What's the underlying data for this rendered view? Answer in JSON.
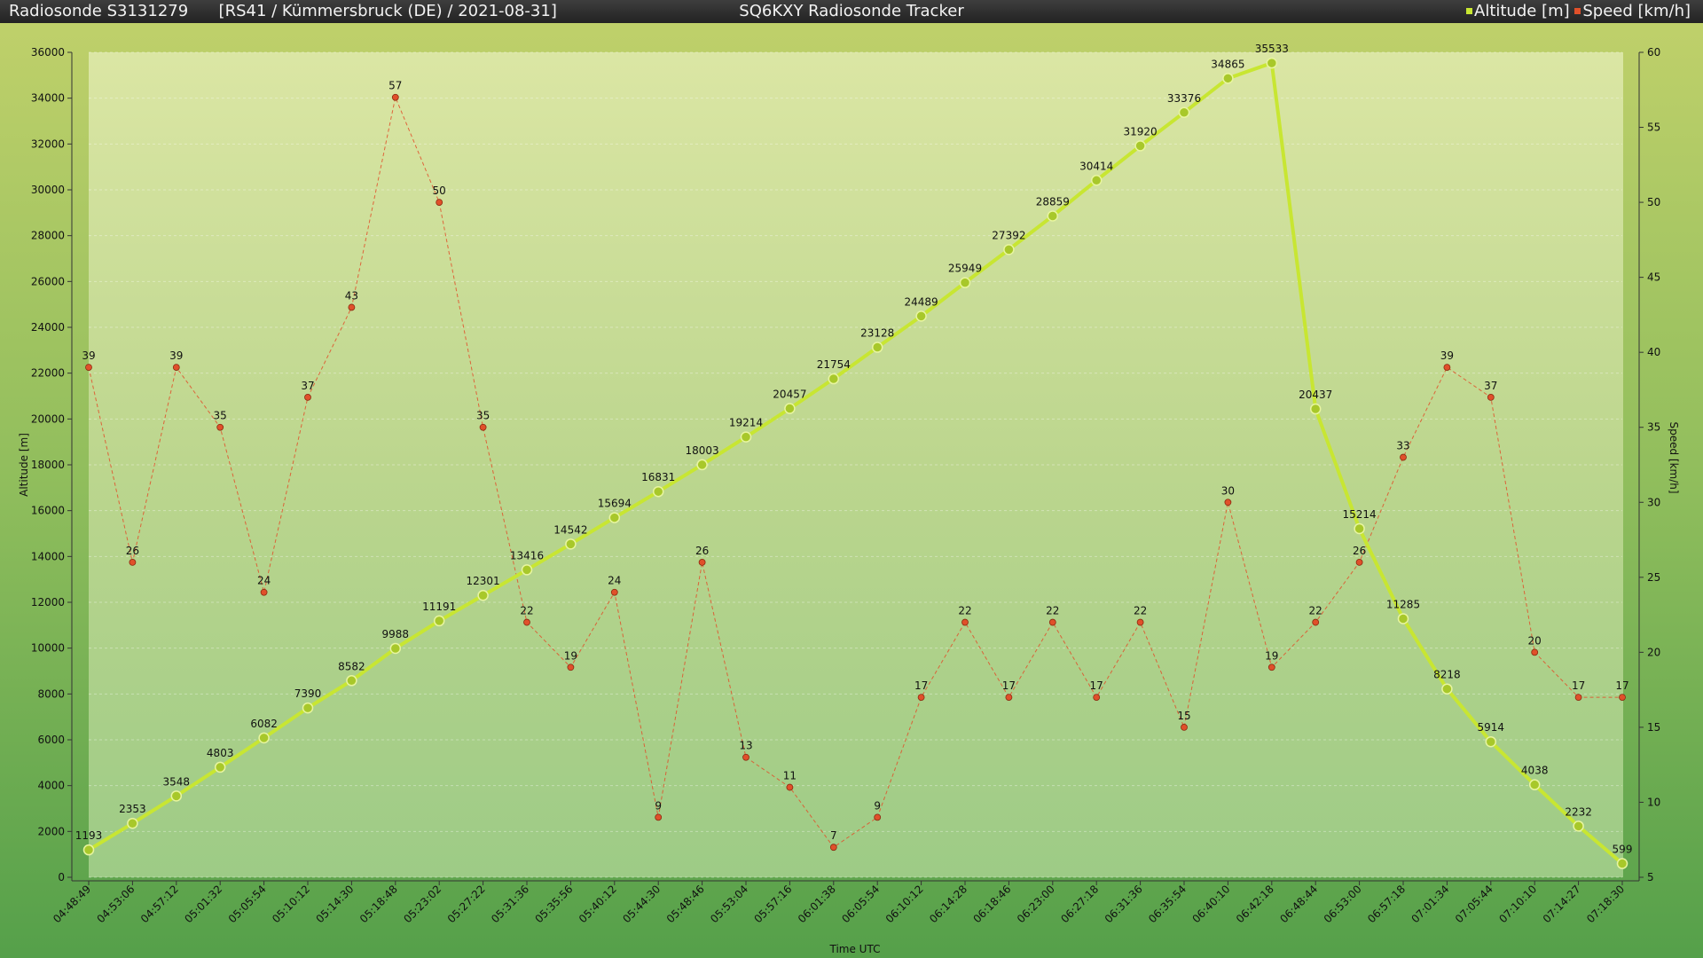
{
  "header": {
    "sonde": "Radiosonde S3131279",
    "info": "[RS41 / Kümmersbruck (DE) / 2021-08-31]",
    "app_title": "SQ6KXY Radiosonde Tracker",
    "legend_altitude": "Altitude [m]",
    "legend_speed": "Speed [km/h]"
  },
  "colors": {
    "altitude": "#c8e632",
    "speed": "#e0502a"
  },
  "chart_data": {
    "type": "line",
    "xlabel": "Time UTC",
    "ylabel_left": "Altitude [m]",
    "ylabel_right": "Speed [km/h]",
    "ylim_left": [
      0,
      36000
    ],
    "ylim_right": [
      5,
      60
    ],
    "yticks_left": [
      0,
      2000,
      4000,
      6000,
      8000,
      10000,
      12000,
      14000,
      16000,
      18000,
      20000,
      22000,
      24000,
      26000,
      28000,
      30000,
      32000,
      34000,
      36000
    ],
    "yticks_right": [
      5,
      10,
      15,
      20,
      25,
      30,
      35,
      40,
      45,
      50,
      55,
      60
    ],
    "grid": true,
    "legend_position": "top-right",
    "x": [
      "04:48:49",
      "04:53:06",
      "04:57:12",
      "05:01:32",
      "05:05:54",
      "05:10:12",
      "05:14:30",
      "05:18:48",
      "05:23:02",
      "05:27:22",
      "05:31:36",
      "05:35:56",
      "05:40:12",
      "05:44:30",
      "05:48:46",
      "05:53:04",
      "05:57:16",
      "06:01:38",
      "06:05:54",
      "06:10:12",
      "06:14:28",
      "06:18:46",
      "06:23:00",
      "06:27:18",
      "06:31:36",
      "06:35:54",
      "06:40:10",
      "06:42:18",
      "06:48:44",
      "06:53:00",
      "06:57:18",
      "07:01:34",
      "07:05:44",
      "07:10:10",
      "07:14:27",
      "07:18:30"
    ],
    "series": [
      {
        "name": "Altitude [m]",
        "axis": "left",
        "values": [
          1193,
          2353,
          3548,
          4803,
          6082,
          7390,
          8582,
          9988,
          11191,
          12301,
          13416,
          14542,
          15694,
          16831,
          18003,
          19214,
          20457,
          21754,
          23128,
          24489,
          25949,
          27392,
          28859,
          30414,
          31920,
          33376,
          34865,
          35533,
          20437,
          15214,
          11285,
          8218,
          5914,
          4038,
          2232,
          599
        ]
      },
      {
        "name": "Speed [km/h]",
        "axis": "right",
        "values": [
          39,
          26,
          39,
          35,
          24,
          37,
          43,
          57,
          50,
          35,
          22,
          19,
          24,
          9,
          26,
          13,
          11,
          7,
          9,
          17,
          22,
          17,
          22,
          17,
          22,
          15,
          30,
          19,
          22,
          26,
          33,
          39,
          37,
          20,
          17,
          17
        ]
      }
    ]
  }
}
